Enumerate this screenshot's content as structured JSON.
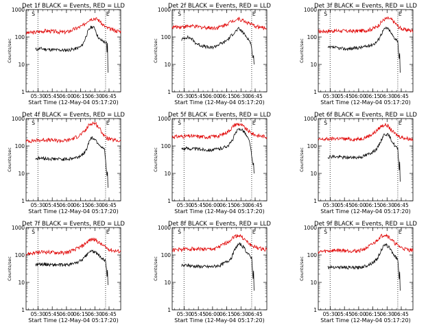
{
  "chart_data": {
    "type": "line",
    "title_suffix": "BLACK = Events, RED = LLD",
    "xlabel": "Start Time (12-May-04 05:17:20)",
    "ylabel": "Counts/sec",
    "x_tick_labels": [
      "05:30",
      "05:45",
      "06:00",
      "06:15",
      "06:30",
      "06:45"
    ],
    "x_ticks_min": [
      12.667,
      27.667,
      42.667,
      57.667,
      72.667,
      87.667
    ],
    "xlim_min": [
      0,
      100
    ],
    "y_scale": "log",
    "ylim": [
      1,
      1000
    ],
    "y_tick_labels": [
      "1",
      "10",
      "100",
      "1000"
    ],
    "series_colors": {
      "events": "#000000",
      "lld": "#e00000"
    },
    "marker_labels": [
      "S",
      "E"
    ],
    "panels": [
      {
        "label": "Det 1f",
        "markers_min": [
          12.5,
          84.0
        ],
        "events_end_min": 86.5,
        "lld": {
          "x": [
            0,
            10,
            20,
            30,
            40,
            45,
            50,
            55,
            60,
            62,
            65,
            68,
            72,
            75,
            78,
            80,
            85,
            90,
            95,
            100
          ],
          "y": [
            140,
            150,
            170,
            160,
            150,
            160,
            190,
            220,
            260,
            300,
            400,
            460,
            480,
            450,
            380,
            300,
            220,
            190,
            170,
            160
          ]
        },
        "events": {
          "x": [
            10,
            15,
            20,
            30,
            40,
            45,
            50,
            55,
            58,
            60,
            62,
            65,
            68,
            70,
            73,
            75,
            78,
            80,
            83,
            85,
            86.5
          ],
          "y": [
            35,
            38,
            36,
            34,
            33,
            34,
            36,
            40,
            45,
            55,
            80,
            150,
            220,
            240,
            200,
            120,
            80,
            75,
            65,
            60,
            5
          ]
        }
      },
      {
        "label": "Det 2f",
        "markers_min": [
          12.5,
          84.0
        ],
        "events_end_min": 86.5,
        "lld": {
          "x": [
            0,
            10,
            20,
            30,
            40,
            45,
            50,
            55,
            60,
            63,
            66,
            70,
            75,
            80,
            85,
            90,
            95,
            100
          ],
          "y": [
            230,
            240,
            250,
            230,
            220,
            215,
            230,
            270,
            330,
            380,
            420,
            460,
            400,
            330,
            270,
            240,
            220,
            210
          ]
        },
        "events": {
          "x": [
            10,
            15,
            20,
            25,
            30,
            35,
            40,
            45,
            50,
            55,
            60,
            63,
            66,
            70,
            73,
            76,
            80,
            83,
            86.5
          ],
          "y": [
            80,
            100,
            90,
            60,
            50,
            45,
            40,
            45,
            55,
            65,
            90,
            120,
            150,
            200,
            170,
            130,
            90,
            60,
            10
          ]
        }
      },
      {
        "label": "Det 3f",
        "markers_min": [
          12.5,
          84.0
        ],
        "events_end_min": 86.5,
        "lld": {
          "x": [
            0,
            10,
            20,
            30,
            40,
            50,
            55,
            60,
            63,
            66,
            70,
            74,
            78,
            82,
            86,
            90,
            95,
            100
          ],
          "y": [
            160,
            165,
            170,
            165,
            165,
            175,
            190,
            220,
            260,
            330,
            450,
            480,
            420,
            300,
            220,
            190,
            180,
            170
          ]
        },
        "events": {
          "x": [
            10,
            15,
            20,
            25,
            30,
            35,
            40,
            45,
            50,
            55,
            60,
            63,
            66,
            69,
            72,
            75,
            78,
            81,
            84,
            86.5
          ],
          "y": [
            40,
            42,
            40,
            38,
            37,
            38,
            40,
            42,
            45,
            50,
            60,
            75,
            120,
            180,
            220,
            180,
            120,
            90,
            75,
            5
          ]
        }
      },
      {
        "label": "Det 4f",
        "markers_min": [
          12.5,
          84.0
        ],
        "events_end_min": 86.5,
        "lld": {
          "x": [
            0,
            10,
            20,
            30,
            40,
            45,
            50,
            55,
            60,
            63,
            66,
            70,
            74,
            78,
            82,
            85,
            90,
            95,
            100
          ],
          "y": [
            150,
            160,
            170,
            160,
            155,
            165,
            190,
            230,
            300,
            380,
            560,
            700,
            640,
            420,
            260,
            200,
            170,
            160,
            150
          ]
        },
        "events": {
          "x": [
            10,
            15,
            20,
            30,
            40,
            45,
            50,
            55,
            60,
            63,
            66,
            68,
            70,
            73,
            75,
            78,
            80,
            83,
            86.5
          ],
          "y": [
            35,
            36,
            35,
            34,
            33,
            34,
            36,
            40,
            50,
            65,
            130,
            190,
            200,
            180,
            140,
            110,
            90,
            70,
            3
          ]
        }
      },
      {
        "label": "Det 5f",
        "markers_min": [
          12.5,
          84.0
        ],
        "events_end_min": 86.5,
        "lld": {
          "x": [
            0,
            10,
            20,
            30,
            40,
            45,
            50,
            55,
            60,
            63,
            66,
            70,
            74,
            78,
            82,
            86,
            90,
            95,
            100
          ],
          "y": [
            220,
            225,
            230,
            220,
            215,
            225,
            240,
            280,
            360,
            460,
            600,
            640,
            560,
            420,
            320,
            270,
            240,
            230,
            220
          ]
        },
        "events": {
          "x": [
            10,
            15,
            20,
            30,
            40,
            45,
            50,
            55,
            60,
            63,
            66,
            70,
            73,
            76,
            79,
            82,
            86.5
          ],
          "y": [
            80,
            82,
            80,
            76,
            72,
            74,
            80,
            90,
            110,
            150,
            260,
            400,
            420,
            340,
            220,
            140,
            10
          ]
        }
      },
      {
        "label": "Det 6f",
        "markers_min": [
          12.5,
          84.0
        ],
        "events_end_min": 86.5,
        "lld": {
          "x": [
            0,
            10,
            20,
            30,
            40,
            45,
            50,
            55,
            60,
            63,
            66,
            70,
            73,
            76,
            80,
            84,
            88,
            92,
            96,
            100
          ],
          "y": [
            170,
            180,
            190,
            180,
            175,
            185,
            210,
            250,
            320,
            400,
            520,
            600,
            560,
            420,
            300,
            240,
            210,
            195,
            185,
            175
          ]
        },
        "events": {
          "x": [
            10,
            15,
            20,
            30,
            40,
            45,
            50,
            55,
            60,
            63,
            66,
            69,
            72,
            75,
            78,
            81,
            84,
            86.5
          ],
          "y": [
            40,
            42,
            40,
            38,
            38,
            40,
            45,
            55,
            70,
            90,
            150,
            250,
            280,
            230,
            150,
            100,
            80,
            5
          ]
        }
      },
      {
        "label": "Det 7f",
        "markers_min": [
          12.5,
          84.0
        ],
        "events_end_min": 86.5,
        "lld": {
          "x": [
            0,
            10,
            20,
            30,
            40,
            45,
            50,
            55,
            60,
            63,
            66,
            70,
            73,
            76,
            80,
            84,
            88,
            92,
            96,
            100
          ],
          "y": [
            110,
            120,
            130,
            125,
            120,
            130,
            150,
            180,
            220,
            270,
            330,
            380,
            360,
            300,
            240,
            190,
            160,
            145,
            140,
            135
          ]
        },
        "events": {
          "x": [
            10,
            15,
            20,
            30,
            40,
            45,
            50,
            55,
            60,
            63,
            66,
            69,
            72,
            75,
            78,
            81,
            84,
            86.5
          ],
          "y": [
            45,
            47,
            46,
            44,
            43,
            45,
            48,
            55,
            70,
            90,
            120,
            140,
            130,
            110,
            90,
            75,
            65,
            8
          ]
        }
      },
      {
        "label": "Det 8f",
        "markers_min": [
          12.5,
          84.0
        ],
        "events_end_min": 86.5,
        "lld": {
          "x": [
            0,
            10,
            20,
            30,
            40,
            45,
            50,
            55,
            60,
            63,
            66,
            70,
            73,
            76,
            80,
            84,
            88,
            92,
            96,
            100
          ],
          "y": [
            150,
            160,
            170,
            165,
            160,
            170,
            200,
            250,
            320,
            400,
            480,
            520,
            480,
            380,
            280,
            220,
            190,
            175,
            165,
            160
          ]
        },
        "events": {
          "x": [
            10,
            15,
            20,
            30,
            40,
            45,
            50,
            55,
            60,
            63,
            66,
            69,
            72,
            75,
            78,
            81,
            84,
            86.5
          ],
          "y": [
            40,
            42,
            40,
            38,
            37,
            39,
            42,
            50,
            65,
            85,
            150,
            230,
            250,
            200,
            140,
            100,
            80,
            5
          ]
        }
      },
      {
        "label": "Det 9f",
        "markers_min": [
          12.5,
          84.0
        ],
        "events_end_min": 86.5,
        "lld": {
          "x": [
            0,
            10,
            20,
            30,
            40,
            45,
            50,
            55,
            60,
            63,
            66,
            70,
            73,
            76,
            80,
            84,
            88,
            92,
            96,
            100
          ],
          "y": [
            130,
            140,
            150,
            145,
            140,
            150,
            175,
            220,
            290,
            380,
            480,
            560,
            520,
            400,
            290,
            220,
            185,
            165,
            155,
            150
          ]
        },
        "events": {
          "x": [
            10,
            15,
            20,
            30,
            40,
            45,
            50,
            55,
            60,
            63,
            66,
            69,
            72,
            75,
            78,
            81,
            84,
            86.5
          ],
          "y": [
            35,
            37,
            36,
            35,
            34,
            36,
            40,
            48,
            60,
            80,
            140,
            210,
            230,
            190,
            130,
            90,
            70,
            5
          ]
        }
      }
    ]
  }
}
